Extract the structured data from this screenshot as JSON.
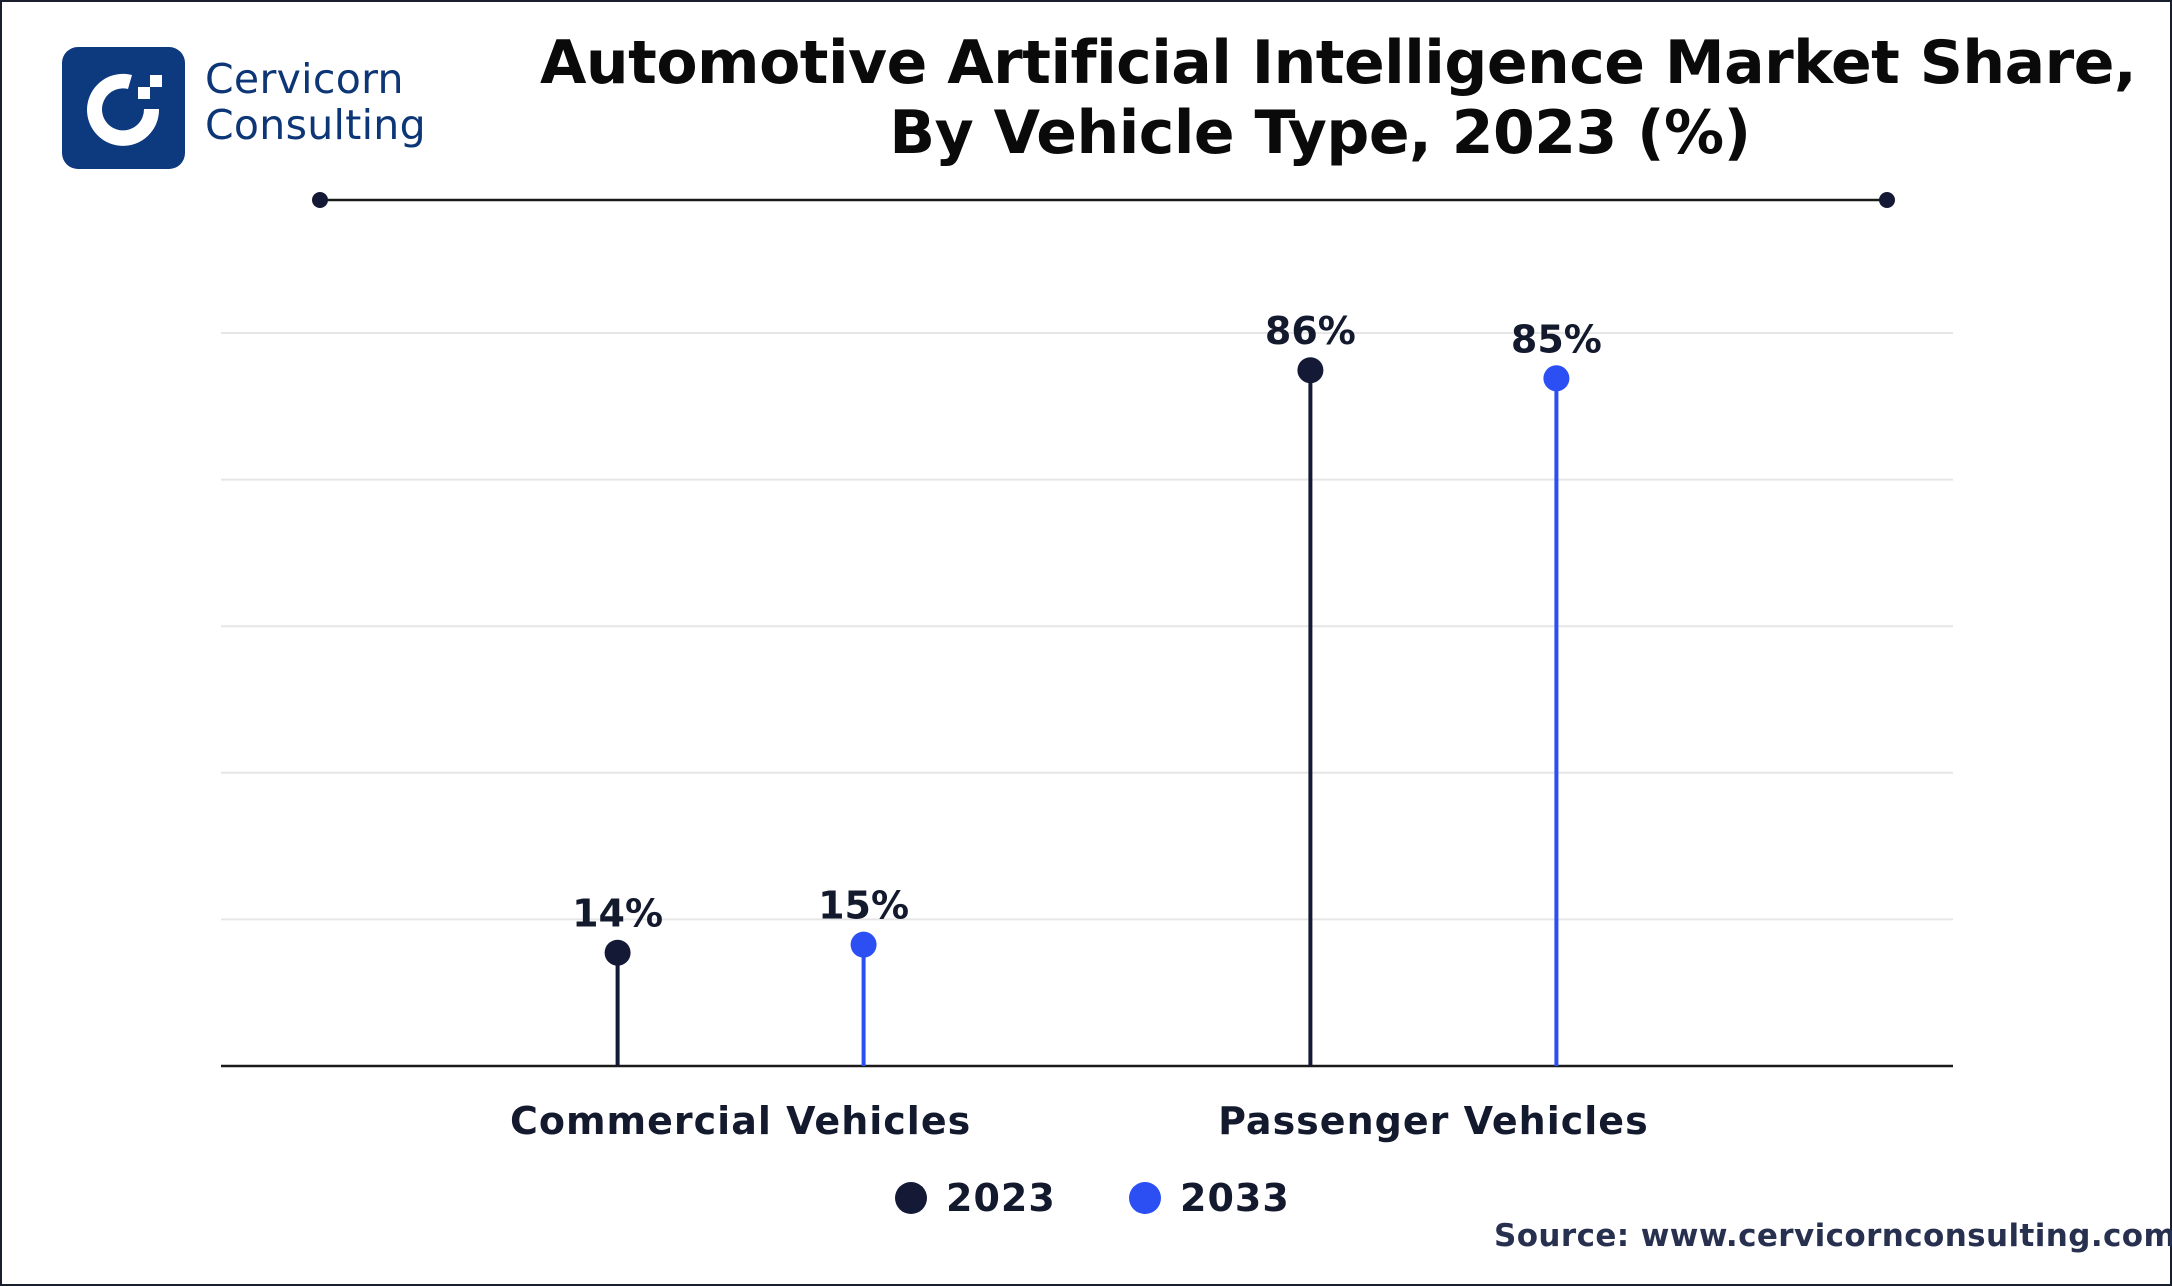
{
  "brand": {
    "name_line1": "Cervicorn",
    "name_line2": "Consulting",
    "logo_color": "#0d3a7e"
  },
  "header": {
    "title_line1": "Automotive Artificial Intelligence Market Share,",
    "title_line2": "By Vehicle Type, 2023 (%)"
  },
  "footer": {
    "source": "Source: www.cervicornconsulting.com"
  },
  "colors": {
    "series_2023": "#141a36",
    "series_2033": "#2b4ff2",
    "text": "#141a2e",
    "grid": "#e6e6e6",
    "axis": "#1a1a1a"
  },
  "chart_data": {
    "type": "lollipop",
    "title": "Automotive Artificial Intelligence Market Share, By Vehicle Type, 2023 (%)",
    "xlabel": "",
    "ylabel": "",
    "categories": [
      "Commercial Vehicles",
      "Passenger Vehicles"
    ],
    "series": [
      {
        "name": "2023",
        "values": [
          14,
          86
        ],
        "labels": [
          "14%",
          "86%"
        ]
      },
      {
        "name": "2033",
        "values": [
          15,
          85
        ],
        "labels": [
          "15%",
          "85%"
        ]
      }
    ],
    "ylim": [
      0,
      90.6
    ],
    "grid": true,
    "gridline_count": 5,
    "y_tick_labels_visible": false,
    "legend": {
      "position": "bottom-center",
      "entries": [
        "2023",
        "2033"
      ]
    }
  }
}
